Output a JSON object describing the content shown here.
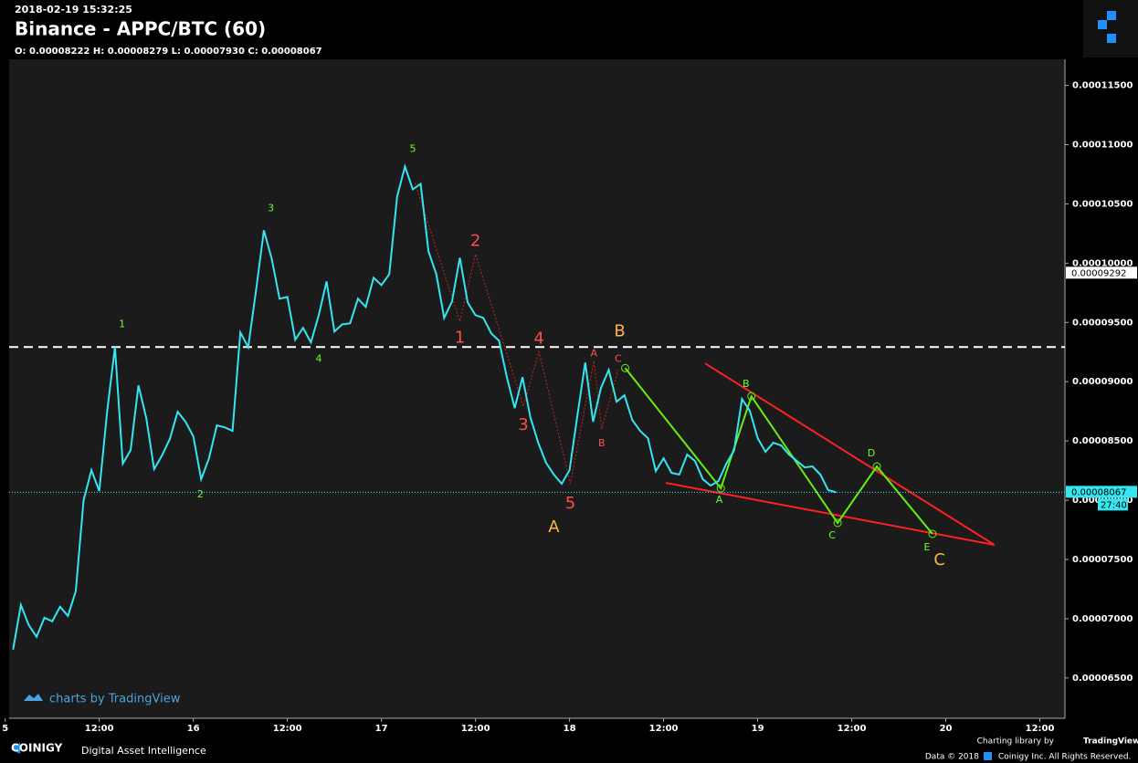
{
  "header": {
    "timestamp": "2018-02-19 15:32:25",
    "title": "Binance - APPC/BTC (60)",
    "ohlc": "O: 0.00008222 H: 0.00008279 L: 0.00007930 C: 0.00008067"
  },
  "chart_data": {
    "type": "line",
    "color": "#33e6f2",
    "x": [
      1,
      2,
      3,
      4,
      5,
      6,
      7,
      8,
      9,
      10,
      11,
      12,
      13,
      14,
      15,
      16,
      17,
      18,
      19,
      20,
      21,
      22,
      23,
      24,
      25,
      26,
      27,
      28,
      29,
      30,
      31,
      32,
      33,
      34,
      35,
      36,
      37,
      38,
      39,
      40,
      41,
      42,
      43,
      44,
      45,
      46,
      47,
      48,
      49,
      50,
      51,
      52,
      53,
      54,
      55,
      56,
      57,
      58,
      59,
      60,
      61,
      62,
      63,
      64,
      65,
      66,
      67,
      68,
      69,
      70,
      71,
      72,
      73,
      74,
      75,
      76,
      77,
      78,
      79,
      80,
      81,
      82,
      83,
      84,
      85,
      86,
      87,
      88,
      89,
      90,
      91,
      92,
      93,
      94,
      95,
      96,
      97,
      98,
      99,
      100,
      101,
      102,
      103,
      104,
      105,
      106
    ],
    "values": [
      6.739e-05,
      7.116e-05,
      6.947e-05,
      6.847e-05,
      7.008e-05,
      6.978e-05,
      7.101e-05,
      7.024e-05,
      7.231e-05,
      8e-05,
      8.254e-05,
      8.077e-05,
      8.746e-05,
      9.292e-05,
      8.308e-05,
      8.423e-05,
      8.969e-05,
      8.692e-05,
      8.262e-05,
      8.377e-05,
      8.516e-05,
      8.746e-05,
      8.662e-05,
      8.539e-05,
      8.177e-05,
      8.354e-05,
      8.631e-05,
      8.615e-05,
      8.585e-05,
      9.415e-05,
      9.292e-05,
      9.769e-05,
      0.00010277,
      0.00010038,
      9.7e-05,
      9.715e-05,
      9.354e-05,
      9.454e-05,
      9.331e-05,
      9.561e-05,
      9.846e-05,
      9.423e-05,
      9.484e-05,
      9.492e-05,
      9.7e-05,
      9.631e-05,
      9.877e-05,
      9.815e-05,
      9.907e-05,
      0.00010561,
      0.00010815,
      0.00010623,
      0.00010669,
      0.000101,
      9.907e-05,
      9.538e-05,
      9.677e-05,
      0.00010046,
      9.669e-05,
      9.561e-05,
      9.538e-05,
      9.408e-05,
      9.346e-05,
      9.038e-05,
      8.777e-05,
      9.038e-05,
      8.7e-05,
      8.485e-05,
      8.316e-05,
      8.216e-05,
      8.139e-05,
      8.254e-05,
      8.715e-05,
      9.161e-05,
      8.662e-05,
      8.946e-05,
      9.1e-05,
      8.831e-05,
      8.885e-05,
      8.677e-05,
      8.585e-05,
      8.523e-05,
      8.246e-05,
      8.354e-05,
      8.231e-05,
      8.216e-05,
      8.385e-05,
      8.331e-05,
      8.177e-05,
      8.123e-05,
      8.162e-05,
      8.308e-05,
      8.423e-05,
      8.854e-05,
      8.754e-05,
      8.523e-05,
      8.408e-05,
      8.485e-05,
      8.462e-05,
      8.385e-05,
      8.331e-05,
      8.277e-05,
      8.285e-05,
      8.216e-05,
      8.085e-05,
      8.067e-05
    ],
    "xlim": [
      0.5,
      135.2
    ],
    "xticks": [
      {
        "value": 0,
        "label": "5"
      },
      {
        "value": 12,
        "label": "12:00"
      },
      {
        "value": 24,
        "label": "16"
      },
      {
        "value": 36,
        "label": "12:00"
      },
      {
        "value": 48,
        "label": "17"
      },
      {
        "value": 60,
        "label": "12:00"
      },
      {
        "value": 72,
        "label": "18"
      },
      {
        "value": 84,
        "label": "12:00"
      },
      {
        "value": 96,
        "label": "19"
      },
      {
        "value": 108,
        "label": "12:00"
      },
      {
        "value": 120,
        "label": "20"
      },
      {
        "value": 132,
        "label": "12:00"
      }
    ],
    "ylim": [
      6.16e-05,
      0.0001172
    ],
    "yticks": [
      {
        "value": 6.5e-05,
        "label": "0.00006500"
      },
      {
        "value": 7e-05,
        "label": "0.00007000"
      },
      {
        "value": 7.5e-05,
        "label": "0.00007500"
      },
      {
        "value": 8e-05,
        "label": "0.00008000"
      },
      {
        "value": 8.5e-05,
        "label": "0.00008500"
      },
      {
        "value": 9e-05,
        "label": "0.00009000"
      },
      {
        "value": 9.5e-05,
        "label": "0.00009500"
      },
      {
        "value": 0.0001,
        "label": "0.00010000"
      },
      {
        "value": 0.000105,
        "label": "0.00010500"
      },
      {
        "value": 0.00011,
        "label": "0.00011000"
      },
      {
        "value": 0.000115,
        "label": "0.00011500"
      }
    ],
    "hline": {
      "value": 9.292e-05,
      "color": "#ffffff"
    },
    "last_price": {
      "value": 8.067e-05,
      "countdown": "27:40",
      "color": "#33e6f2"
    },
    "annotation_groups": [
      {
        "color": "#66ff33",
        "labels": [
          {
            "text": "1",
            "x": 14.9,
            "y": 9.484e-05
          },
          {
            "text": "2",
            "x": 24.9,
            "y": 8.046e-05
          },
          {
            "text": "3",
            "x": 33.9,
            "y": 0.00010461
          },
          {
            "text": "4",
            "x": 40,
            "y": 9.192e-05
          },
          {
            "text": "5",
            "x": 52,
            "y": 0.00010961
          }
        ]
      },
      {
        "color": "#ff4d4d",
        "labels": [
          {
            "text": "1",
            "x": 58,
            "y": 9.369e-05
          },
          {
            "text": "2",
            "x": 60,
            "y": 0.00010184
          },
          {
            "text": "3",
            "x": 66.1,
            "y": 8.631e-05
          },
          {
            "text": "4",
            "x": 68.1,
            "y": 9.361e-05
          },
          {
            "text": "5",
            "x": 72.1,
            "y": 7.97e-05
          }
        ]
      },
      {
        "color": "#ff4d4d",
        "labels": [
          {
            "text": "A",
            "x": 75.1,
            "y": 9.238e-05
          },
          {
            "text": "B",
            "x": 76.1,
            "y": 8.477e-05
          },
          {
            "text": "C",
            "x": 78.2,
            "y": 9.192e-05
          }
        ]
      },
      {
        "color": "#ffb347",
        "labels": [
          {
            "text": "A",
            "x": 70,
            "y": 7.77e-05
          },
          {
            "text": "B",
            "x": 78.4,
            "y": 9.423e-05
          },
          {
            "text": "C",
            "x": 119.2,
            "y": 7.493e-05
          }
        ]
      },
      {
        "color": "#66ff33",
        "labels": [
          {
            "text": "A",
            "x": 91.1,
            "y": 8e-05
          },
          {
            "text": "B",
            "x": 94.5,
            "y": 8.977e-05
          },
          {
            "text": "C",
            "x": 105.5,
            "y": 7.7e-05
          },
          {
            "text": "D",
            "x": 110.5,
            "y": 8.392e-05
          },
          {
            "text": "E",
            "x": 117.6,
            "y": 7.6e-05
          }
        ]
      }
    ],
    "drawings": [
      {
        "color": "#cc2222",
        "x": [
          52.3,
          58,
          60,
          66.1,
          68.1,
          72.1,
          75.1,
          76.1,
          78.2
        ],
        "y": [
          0.00010676,
          9.508e-05,
          0.00010077,
          8.792e-05,
          9.254e-05,
          8.139e-05,
          9.177e-05,
          8.6e-05,
          9.1e-05
        ]
      },
      {
        "color": "#ff2020",
        "x": [
          89.3,
          126.2
        ],
        "y": [
          9.154e-05,
          7.623e-05
        ]
      },
      {
        "color": "#ff2020",
        "x": [
          84.3,
          126.2
        ],
        "y": [
          8.146e-05,
          7.623e-05
        ]
      },
      {
        "color": "#66ee11",
        "x": [
          79.1,
          91.3,
          95.2,
          106.2,
          111.2,
          118.3
        ],
        "y": [
          9.115e-05,
          8.1e-05,
          8.877e-05,
          7.808e-05,
          8.285e-05,
          7.716e-05
        ]
      }
    ]
  },
  "footer": {
    "tv_badge": "charts by TradingView",
    "brand": "COINIGY",
    "tagline": "Digital Asset Intelligence",
    "charting": "Charting library by",
    "tv": "TradingView",
    "data_year": "Data © 2018",
    "rights": "Coinigy Inc. All Rights Reserved."
  }
}
